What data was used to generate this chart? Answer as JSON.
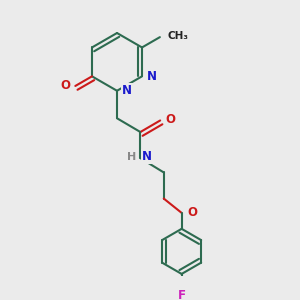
{
  "background_color": "#ebebeb",
  "bond_color": "#2d6b50",
  "bond_width": 1.5,
  "atom_colors": {
    "N": "#1a1acc",
    "O": "#cc1a1a",
    "F": "#cc22bb",
    "C": "#222222",
    "H": "#888888"
  },
  "font_size_atom": 8.5,
  "figsize": [
    3.0,
    3.0
  ],
  "dpi": 100
}
